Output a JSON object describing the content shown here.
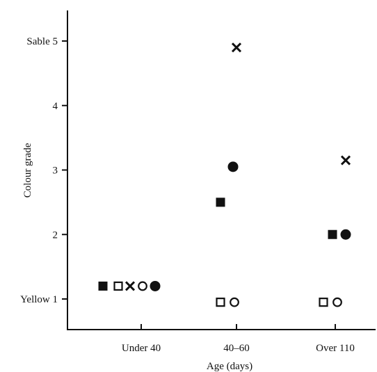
{
  "chart_data": {
    "type": "scatter",
    "title": "",
    "xlabel": "Age (days)",
    "ylabel": "Colour grade",
    "categories": [
      "Under 40",
      "40–60",
      "Over 110"
    ],
    "y_ticks": [
      {
        "value": 1,
        "label": "Yellow 1"
      },
      {
        "value": 2,
        "label": "2"
      },
      {
        "value": 3,
        "label": "3"
      },
      {
        "value": 4,
        "label": "4"
      },
      {
        "value": 5,
        "label": "Sable 5"
      }
    ],
    "ylim": [
      0.4,
      5.5
    ],
    "grid": false,
    "legend": "none",
    "points": [
      {
        "category": "Under 40",
        "marker": "filled-square",
        "y": 1.2
      },
      {
        "category": "Under 40",
        "marker": "open-square",
        "y": 1.2
      },
      {
        "category": "Under 40",
        "marker": "cross",
        "y": 1.2
      },
      {
        "category": "Under 40",
        "marker": "open-circle",
        "y": 1.2
      },
      {
        "category": "Under 40",
        "marker": "filled-circle",
        "y": 1.2
      },
      {
        "category": "40–60",
        "marker": "cross",
        "y": 4.9
      },
      {
        "category": "40–60",
        "marker": "filled-circle",
        "y": 3.05
      },
      {
        "category": "40–60",
        "marker": "filled-square",
        "y": 2.5
      },
      {
        "category": "40–60",
        "marker": "open-square",
        "y": 0.95
      },
      {
        "category": "40–60",
        "marker": "open-circle",
        "y": 0.95
      },
      {
        "category": "Over 110",
        "marker": "cross",
        "y": 3.15
      },
      {
        "category": "Over 110",
        "marker": "filled-square",
        "y": 2.0
      },
      {
        "category": "Over 110",
        "marker": "filled-circle",
        "y": 2.0
      },
      {
        "category": "Over 110",
        "marker": "open-square",
        "y": 0.95
      },
      {
        "category": "Over 110",
        "marker": "open-circle",
        "y": 0.95
      }
    ]
  }
}
